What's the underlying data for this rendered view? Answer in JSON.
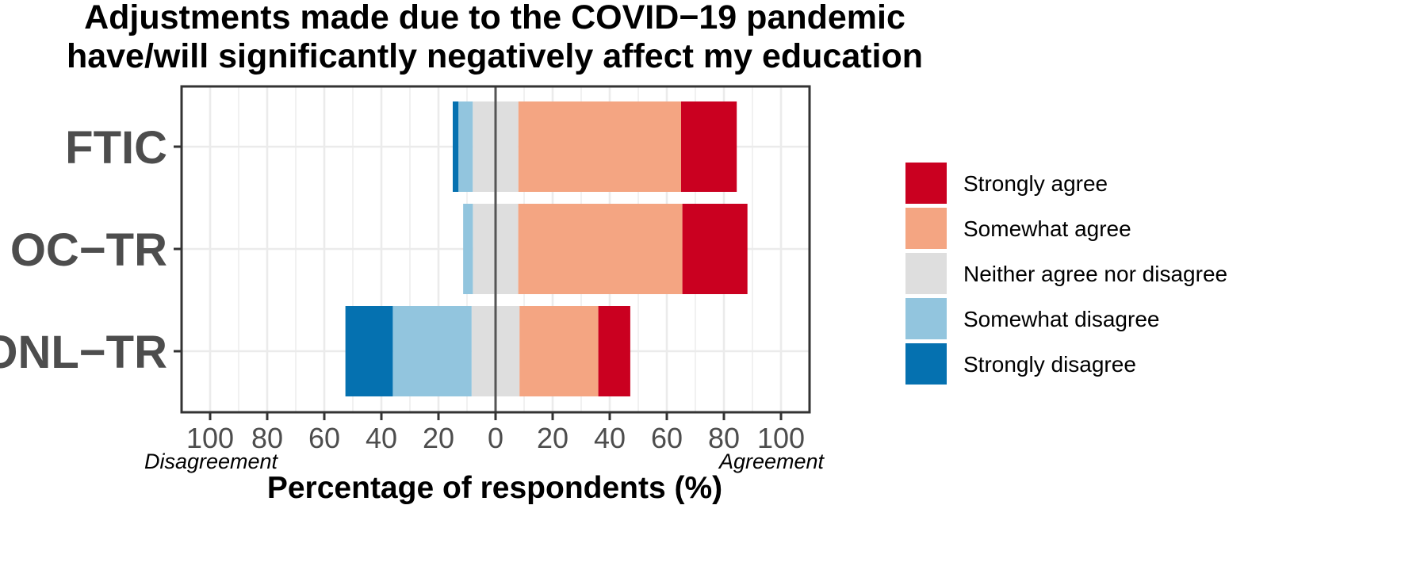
{
  "chart_data": {
    "type": "bar",
    "orientation": "horizontal",
    "stacked": "diverging",
    "title": [
      "Adjustments made due to the COVID−19 pandemic",
      "have/will significantly negatively affect my education"
    ],
    "xlabel": "Percentage of respondents (%)",
    "ylabel": "",
    "xlim": [
      -110,
      110
    ],
    "x_ticks": [
      -100,
      -80,
      -60,
      -40,
      -20,
      0,
      20,
      40,
      60,
      80,
      100
    ],
    "x_tick_labels": [
      "100",
      "80",
      "60",
      "40",
      "20",
      "0",
      "20",
      "40",
      "60",
      "80",
      "100"
    ],
    "annotations": {
      "left": "Disagreement",
      "right": "Agreement"
    },
    "grid": true,
    "legend_position": "right",
    "categories": [
      "FTIC",
      "OC−TR",
      "ONL−TR"
    ],
    "series": [
      {
        "name": "Strongly agree",
        "color": "#ca0020",
        "values": [
          19.5,
          22.8,
          11.2
        ]
      },
      {
        "name": "Somewhat agree",
        "color": "#f4a582",
        "values": [
          57.0,
          57.5,
          27.6
        ]
      },
      {
        "name": "Neither agree nor disagree",
        "color": "#dedede",
        "values": [
          16.0,
          15.9,
          16.8
        ]
      },
      {
        "name": "Somewhat disagree",
        "color": "#92c5de",
        "values": [
          5.0,
          3.4,
          27.6
        ]
      },
      {
        "name": "Strongly disagree",
        "color": "#0571b0",
        "values": [
          2.0,
          0.0,
          16.6
        ]
      }
    ]
  }
}
